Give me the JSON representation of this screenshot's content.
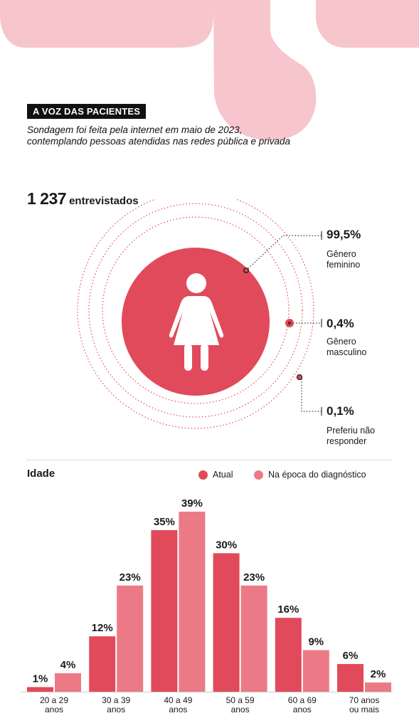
{
  "header": {
    "tag": "A VOZ DAS PACIENTES",
    "subtitle_line1": "Sondagem foi feita pela internet em maio de 2023,",
    "subtitle_line2": "contemplando pessoas atendidas nas redes pública e privada"
  },
  "total": {
    "number": "1 237",
    "label": "entrevistados"
  },
  "gender": [
    {
      "pct": "99,5%",
      "line1": "Gênero",
      "line2": "feminino"
    },
    {
      "pct": "0,4%",
      "line1": "Gênero",
      "line2": "masculino"
    },
    {
      "pct": "0,1%",
      "line1": "Preferiu não",
      "line2": "responder"
    }
  ],
  "colors": {
    "current": "#e14a5a",
    "diagnosis": "#ec7a86",
    "decor": "#f7c5cc"
  },
  "icons": [
    "woman-icon"
  ],
  "chart_data": {
    "type": "bar",
    "title": "Idade",
    "categories": [
      [
        "20 a 29",
        "anos"
      ],
      [
        "30 a 39",
        "anos"
      ],
      [
        "40 a 49",
        "anos"
      ],
      [
        "50 a 59",
        "anos"
      ],
      [
        "60 a 69",
        "anos"
      ],
      [
        "70 anos",
        "ou mais"
      ]
    ],
    "series": [
      {
        "name": "Atual",
        "values": [
          1,
          12,
          35,
          30,
          16,
          6
        ]
      },
      {
        "name": "Na época do diagnóstico",
        "values": [
          4,
          23,
          39,
          23,
          9,
          2
        ]
      }
    ],
    "value_suffix": "%",
    "ylim": [
      0,
      39
    ]
  }
}
